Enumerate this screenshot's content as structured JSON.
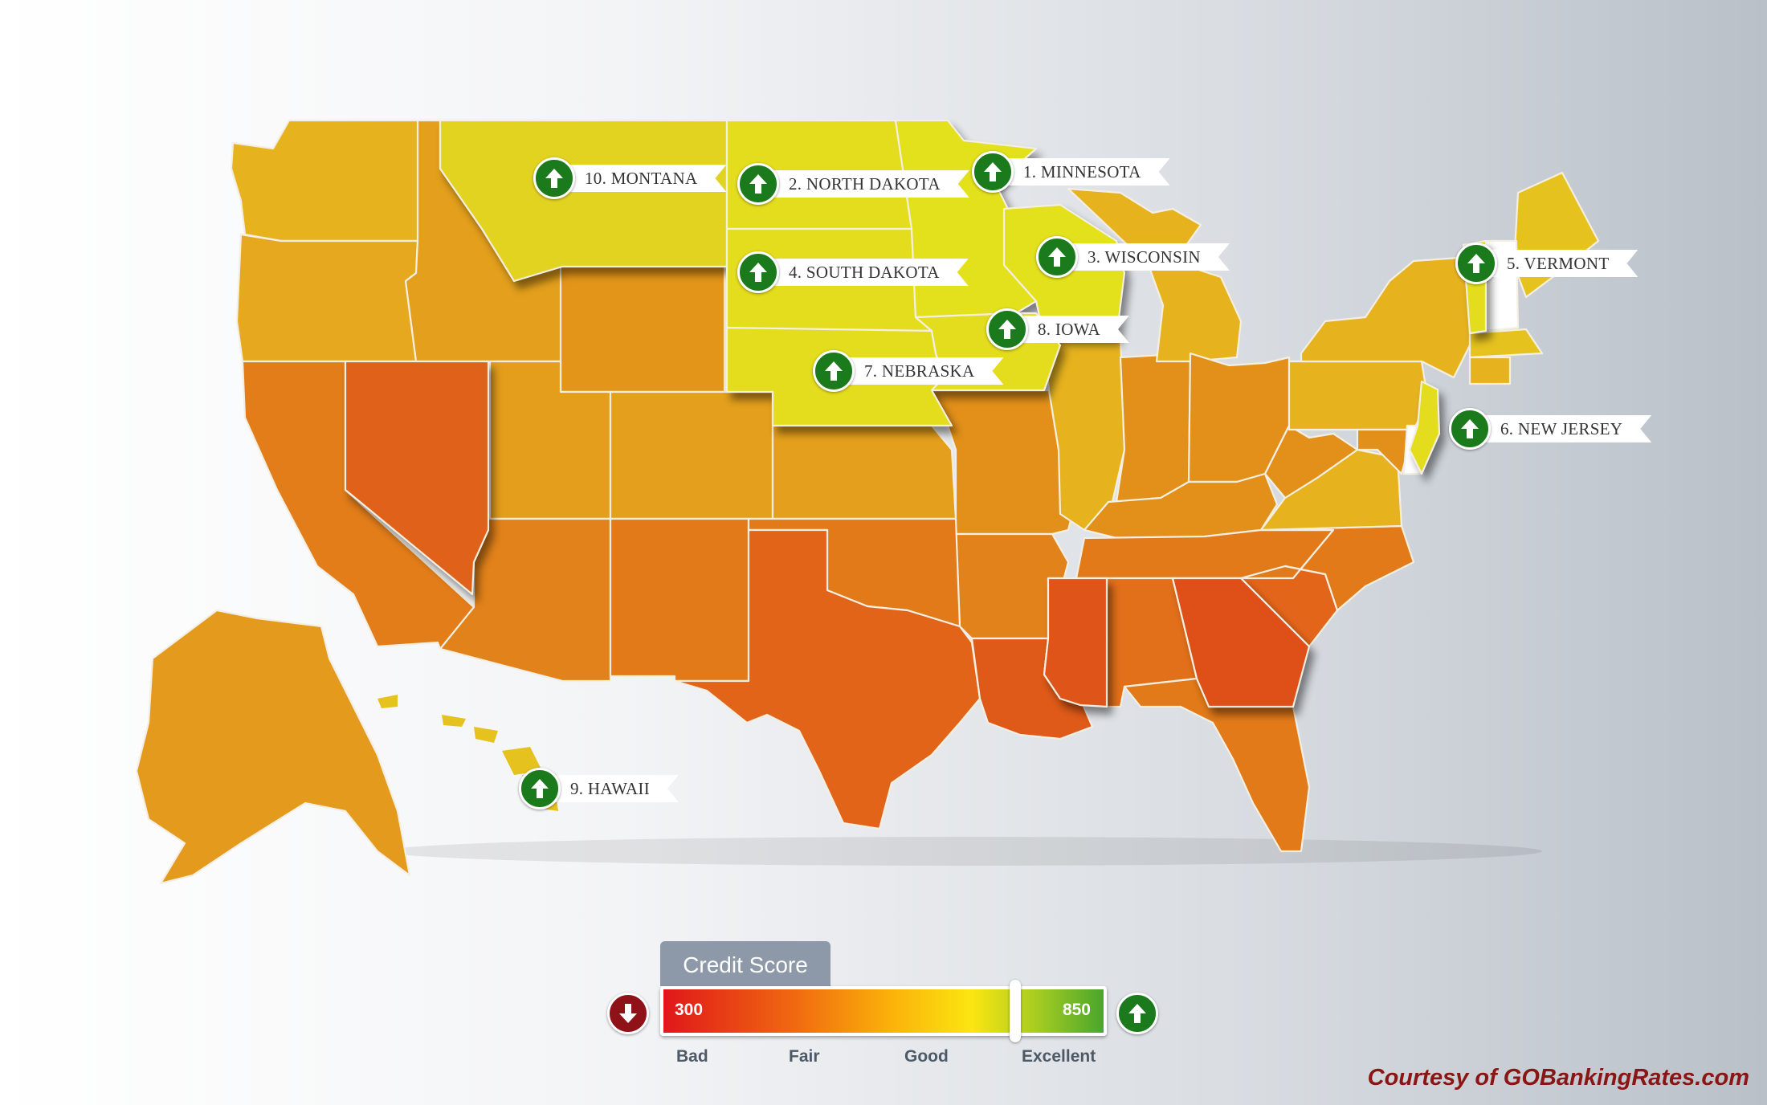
{
  "legend": {
    "title": "Credit Score",
    "min": "300",
    "max": "850",
    "marker_level_fraction": 0.8,
    "labels": [
      "Bad",
      "Fair",
      "Good",
      "Excellent"
    ],
    "colors": [
      "#e0171a",
      "#f06a10",
      "#fbb20a",
      "#fbe611",
      "#a5cc22",
      "#4aa62b"
    ]
  },
  "callouts": [
    {
      "rank_label": "1. MINNESOTA",
      "icon": "up-arrow-icon"
    },
    {
      "rank_label": "2. NORTH DAKOTA",
      "icon": "up-arrow-icon"
    },
    {
      "rank_label": "3. WISCONSIN",
      "icon": "up-arrow-icon"
    },
    {
      "rank_label": "4. SOUTH DAKOTA",
      "icon": "up-arrow-icon"
    },
    {
      "rank_label": "5. VERMONT",
      "icon": "up-arrow-icon"
    },
    {
      "rank_label": "6. NEW JERSEY",
      "icon": "up-arrow-icon"
    },
    {
      "rank_label": "7. NEBRASKA",
      "icon": "up-arrow-icon"
    },
    {
      "rank_label": "8. IOWA",
      "icon": "up-arrow-icon"
    },
    {
      "rank_label": "9. HAWAII",
      "icon": "up-arrow-icon"
    },
    {
      "rank_label": "10. MONTANA",
      "icon": "up-arrow-icon"
    }
  ],
  "credit": "Courtesy of GOBankingRates.com",
  "colors": {
    "top_ten_yellow": "#e3dd1e",
    "high_yellow": "#e6c21f",
    "mid_orange": "#e49a1c",
    "low_orange": "#e26f18",
    "lowest_red_orange": "#df5418",
    "badge_green": "#1b7a1b",
    "down_red": "#8e1217"
  }
}
